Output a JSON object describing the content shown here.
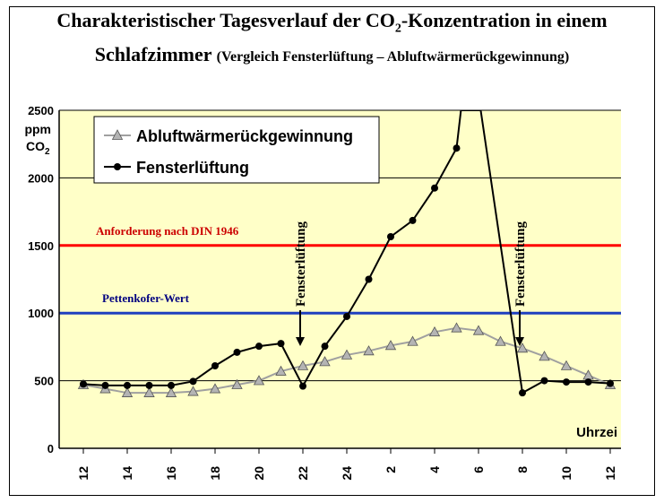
{
  "title": {
    "line1_pre": "Charakteristischer Tagesverlauf der CO",
    "line1_sub": "2",
    "line1_post": "-Konzentration in einem",
    "line2_main": "Schlafzimmer",
    "line2_sub": "(Vergleich Fensterlüftung – Abluftwärmerückgewinnung)"
  },
  "colors": {
    "plot_bg": "#ffffc8",
    "din_line": "#ff0000",
    "pettenkofer_line": "#1f3fbf",
    "series_abluft": "#a0a0a0",
    "series_fenster": "#000000"
  },
  "chart_data": {
    "type": "line",
    "y_unit_line1": "ppm",
    "y_unit_line2_pre": "CO",
    "y_unit_line2_sub": "2",
    "xlabel": "Uhrzei",
    "ylim": [
      0,
      2500
    ],
    "yticks": [
      0,
      500,
      1000,
      1500,
      2000,
      2500
    ],
    "grid": "horizontal",
    "legend_position": "top-left",
    "x_tick_labels": [
      "12",
      "14",
      "16",
      "18",
      "20",
      "22",
      "24",
      "2",
      "4",
      "6",
      "8",
      "10",
      "12"
    ],
    "x_hours": [
      12,
      13,
      14,
      15,
      16,
      17,
      18,
      19,
      20,
      21,
      22,
      23,
      24,
      25,
      26,
      27,
      28,
      29,
      30,
      31,
      32,
      33,
      34,
      35,
      36
    ],
    "series": [
      {
        "name": "Abluftwärmerückgewinnung",
        "marker": "triangle",
        "x": [
          12,
          13,
          14,
          15,
          16,
          17,
          18,
          19,
          20,
          21,
          22,
          23,
          24,
          25,
          26,
          27,
          28,
          29,
          30,
          31,
          32,
          33,
          34,
          35,
          36
        ],
        "values": [
          470,
          440,
          410,
          410,
          410,
          420,
          440,
          470,
          500,
          570,
          610,
          640,
          690,
          720,
          760,
          790,
          860,
          890,
          870,
          790,
          740,
          680,
          610,
          540,
          470
        ]
      },
      {
        "name": "Fensterlüftung",
        "marker": "circle",
        "x": [
          12,
          13,
          14,
          15,
          16,
          17,
          18,
          19,
          20,
          21,
          22,
          23,
          24,
          25,
          26,
          27,
          28,
          29,
          29.2,
          30.1,
          32,
          33,
          34,
          35,
          36
        ],
        "values": [
          475,
          465,
          465,
          465,
          465,
          495,
          610,
          710,
          755,
          775,
          460,
          755,
          975,
          1250,
          1565,
          1685,
          1925,
          2220,
          2500,
          2500,
          410,
          500,
          490,
          490,
          480
        ],
        "marked": [
          true,
          true,
          true,
          true,
          true,
          true,
          true,
          true,
          true,
          true,
          true,
          true,
          true,
          true,
          true,
          true,
          true,
          true,
          false,
          false,
          true,
          true,
          true,
          true,
          true
        ]
      }
    ],
    "reference_lines": [
      {
        "label": "Anforderung nach DIN 1946",
        "value": 1500
      },
      {
        "label": "Pettenkofer-Wert",
        "value": 1000
      }
    ],
    "annotations": [
      {
        "text": "Fensterlüftung",
        "x_hour": 22
      },
      {
        "text": "Fensterlüftung",
        "x_hour": 32
      }
    ]
  }
}
